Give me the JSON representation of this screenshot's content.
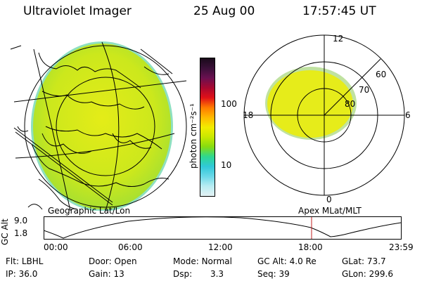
{
  "header": {
    "instrument": "Ultraviolet Imager",
    "date": "25 Aug 00",
    "time": "17:57:45 UT"
  },
  "colorbar": {
    "unit_label": "photon cm⁻²s⁻¹",
    "ticks": [
      "100",
      "10"
    ],
    "colors": [
      "#1a0a1a",
      "#3a1038",
      "#6a1050",
      "#a80830",
      "#e01018",
      "#ff7a00",
      "#ffb800",
      "#f2ec00",
      "#c8e800",
      "#86dc10",
      "#2ed890",
      "#30c8d8",
      "#6ad8e8",
      "#b8ecf2",
      "#e4f2f4"
    ]
  },
  "polar_plot": {
    "mlt_labels": [
      "12",
      "18",
      "6",
      "0"
    ],
    "lat_labels": [
      "60",
      "70",
      "80"
    ]
  },
  "map_labels": {
    "left": "Geographic Lat/Lon",
    "right": "Apex MLat/MLT"
  },
  "altitude_plot": {
    "ylabel": "GC Alt",
    "yticks": [
      "9.0",
      "1.8"
    ],
    "xticks": [
      "00:00",
      "06:00",
      "12:00",
      "18:00",
      "23:59"
    ]
  },
  "info_rows": [
    [
      {
        "label": "Flt:",
        "value": "LBHL"
      },
      {
        "label": "Door:",
        "value": "Open"
      },
      {
        "label": "Mode:",
        "value": "Normal"
      },
      {
        "label": "GC Alt:",
        "value": "4.0 Re"
      },
      {
        "label": "GLat:",
        "value": "73.7"
      }
    ],
    [
      {
        "label": "IP:",
        "value": "36.0"
      },
      {
        "label": "Gain:",
        "value": "13"
      },
      {
        "label": "Dsp:",
        "value": "3.3"
      },
      {
        "label": "Seq:",
        "value": "39"
      },
      {
        "label": "GLon:",
        "value": "299.6"
      }
    ]
  ]
}
